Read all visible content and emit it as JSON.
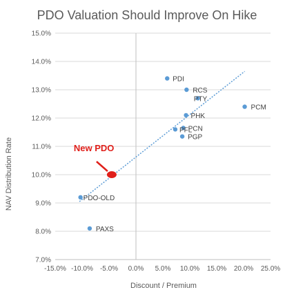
{
  "chart_data": {
    "type": "scatter",
    "title": "PDO Valuation Should Improve On Hike",
    "xlabel": "Discount / Premium",
    "ylabel": "NAV Distribution Rate",
    "xlim": [
      -15,
      25
    ],
    "ylim": [
      7,
      15
    ],
    "x_ticks": [
      "-15.0%",
      "-10.0%",
      "-5.0%",
      "0.0%",
      "5.0%",
      "10.0%",
      "15.0%",
      "20.0%",
      "25.0%"
    ],
    "y_ticks": [
      "7.0%",
      "8.0%",
      "9.0%",
      "10.0%",
      "11.0%",
      "12.0%",
      "13.0%",
      "14.0%",
      "15.0%"
    ],
    "grid": "horizontal",
    "points": [
      {
        "label": "PDI",
        "x": 5.8,
        "y": 13.4
      },
      {
        "label": "RCS",
        "x": 9.4,
        "y": 13.0
      },
      {
        "label": "PTY",
        "x": 11.5,
        "y": 12.7
      },
      {
        "label": "PCM",
        "x": 20.2,
        "y": 12.4
      },
      {
        "label": "PHK",
        "x": 9.3,
        "y": 12.1
      },
      {
        "label": "PFL",
        "x": 7.3,
        "y": 11.6
      },
      {
        "label": "PCN",
        "x": 8.8,
        "y": 11.65
      },
      {
        "label": "PGP",
        "x": 8.6,
        "y": 11.35
      },
      {
        "label": "PDO-OLD",
        "x": -10.3,
        "y": 9.2
      },
      {
        "label": "PAXS",
        "x": -8.6,
        "y": 8.1
      }
    ],
    "highlight": {
      "label": "New PDO",
      "x": -4.5,
      "y": 10.0,
      "color": "#e0201b"
    },
    "trendline": {
      "style": "dotted",
      "x_start": -10.5,
      "y_start": 9.05,
      "x_end": 20.2,
      "y_end": 13.65
    },
    "series_color": "#5b9bd5"
  }
}
